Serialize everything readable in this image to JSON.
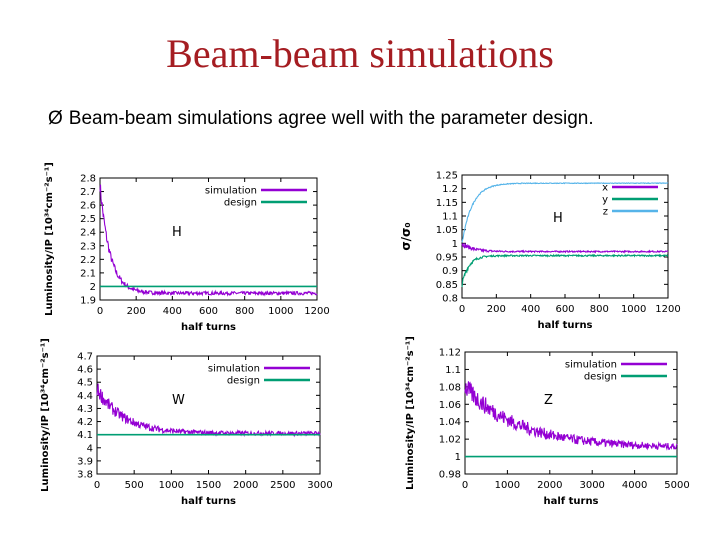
{
  "slide": {
    "title": "Beam-beam simulations",
    "bullet_marker": "Ø",
    "bullet_text": "Beam-beam simulations agree well with the parameter design."
  },
  "chart_data": [
    {
      "type": "line",
      "label_tag": "H",
      "xlabel": "half turns",
      "ylabel": "Luminosity/IP [10³⁴cm⁻²s⁻¹]",
      "xlim": [
        0,
        1200
      ],
      "ylim": [
        1.9,
        2.8
      ],
      "xticks": [
        "0",
        "200",
        "400",
        "600",
        "800",
        "1000",
        "1200"
      ],
      "yticks": [
        "1.9",
        "2",
        "2.1",
        "2.2",
        "2.3",
        "2.4",
        "2.5",
        "2.6",
        "2.7",
        "2.8"
      ],
      "legend": "top-right",
      "series": [
        {
          "name": "simulation",
          "color": "#9400d3",
          "start": 2.75,
          "end": 1.95,
          "decay": 55,
          "noise": 0.05
        },
        {
          "name": "design",
          "color": "#009e73",
          "value": 2.0
        }
      ]
    },
    {
      "type": "line",
      "label_tag": "H",
      "xlabel": "half turns",
      "ylabel": "σ/σ₀",
      "xlim": [
        0,
        1200
      ],
      "ylim": [
        0.8,
        1.25
      ],
      "xticks": [
        "0",
        "200",
        "400",
        "600",
        "800",
        "1000",
        "1200"
      ],
      "yticks": [
        "0.8",
        "0.85",
        "0.9",
        "0.95",
        "1",
        "1.05",
        "1.1",
        "1.15",
        "1.2",
        "1.25"
      ],
      "legend": "top-right",
      "series": [
        {
          "name": "x",
          "color": "#9400d3",
          "start": 1.0,
          "end": 0.97,
          "decay": 60,
          "noise": 0.01
        },
        {
          "name": "y",
          "color": "#009e73",
          "start": 0.85,
          "end": 0.955,
          "decay": 40,
          "noise": 0.01
        },
        {
          "name": "z",
          "color": "#56b4e9",
          "start": 1.0,
          "end": 1.22,
          "decay": 60,
          "noise": 0.005
        }
      ]
    },
    {
      "type": "line",
      "label_tag": "W",
      "xlabel": "half turns",
      "ylabel": "Luminosity/IP [10³⁴cm⁻²s⁻¹]",
      "xlim": [
        0,
        3000
      ],
      "ylim": [
        3.8,
        4.7
      ],
      "xticks": [
        "0",
        "500",
        "1000",
        "1500",
        "2000",
        "2500",
        "3000"
      ],
      "yticks": [
        "3.8",
        "3.9",
        "4",
        "4.1",
        "4.2",
        "4.3",
        "4.4",
        "4.5",
        "4.6",
        "4.7"
      ],
      "legend": "top-right",
      "series": [
        {
          "name": "simulation",
          "color": "#9400d3",
          "start": 4.45,
          "end": 4.11,
          "decay": 350,
          "noise": 0.06
        },
        {
          "name": "design",
          "color": "#009e73",
          "value": 4.1
        }
      ]
    },
    {
      "type": "line",
      "label_tag": "Z",
      "xlabel": "half turns",
      "ylabel": "Luminosity/IP [10³⁴cm⁻²s⁻¹]",
      "xlim": [
        0,
        5000
      ],
      "ylim": [
        0.98,
        1.12
      ],
      "xticks": [
        "0",
        "1000",
        "2000",
        "3000",
        "4000",
        "5000"
      ],
      "yticks": [
        "0.98",
        "1",
        "1.02",
        "1.04",
        "1.06",
        "1.08",
        "1.1",
        "1.12"
      ],
      "legend": "top-right",
      "series": [
        {
          "name": "simulation",
          "color": "#9400d3",
          "start": 1.08,
          "end": 1.01,
          "decay": 1300,
          "noise": 0.012
        },
        {
          "name": "design",
          "color": "#009e73",
          "value": 1.0
        }
      ]
    }
  ]
}
